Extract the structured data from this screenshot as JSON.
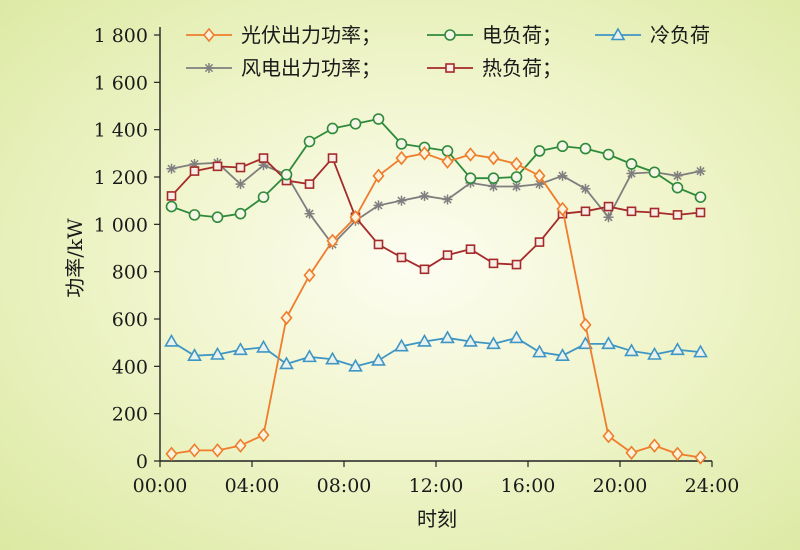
{
  "chart_data": {
    "type": "line",
    "xlabel": "时刻",
    "ylabel": "功率/kW",
    "xlim": [
      0,
      24
    ],
    "ylim": [
      0,
      1800
    ],
    "x_tick_labels": [
      "00:00",
      "04:00",
      "08:00",
      "12:00",
      "16:00",
      "20:00",
      "24:00"
    ],
    "x_tick_values": [
      0,
      4,
      8,
      12,
      16,
      20,
      24
    ],
    "y_tick_labels": [
      "0",
      "200",
      "400",
      "600",
      "800",
      "1 000",
      "1 200",
      "1 400",
      "1 600",
      "1 800"
    ],
    "y_tick_values": [
      0,
      200,
      400,
      600,
      800,
      1000,
      1200,
      1400,
      1600,
      1800
    ],
    "x": [
      1,
      2,
      3,
      4,
      5,
      6,
      7,
      8,
      9,
      10,
      11,
      12,
      13,
      14,
      15,
      16,
      17,
      18,
      19,
      20,
      21,
      22,
      23,
      24
    ],
    "grid": false,
    "legend_position": "top",
    "series": [
      {
        "name": "光伏出力功率；",
        "color": "#ef7d2c",
        "marker": "diamond",
        "values": [
          30,
          45,
          45,
          65,
          110,
          605,
          785,
          930,
          1030,
          1205,
          1280,
          1300,
          1265,
          1295,
          1280,
          1255,
          1205,
          1065,
          575,
          105,
          35,
          65,
          30,
          15
        ]
      },
      {
        "name": "电负荷；",
        "color": "#2f8a3c",
        "marker": "circle",
        "values": [
          1075,
          1040,
          1030,
          1045,
          1115,
          1210,
          1350,
          1405,
          1425,
          1445,
          1340,
          1325,
          1310,
          1195,
          1195,
          1200,
          1310,
          1330,
          1320,
          1295,
          1255,
          1220,
          1155,
          1115
        ]
      },
      {
        "name": "冷负荷",
        "color": "#3f96c4",
        "marker": "triangle",
        "values": [
          505,
          445,
          450,
          470,
          480,
          410,
          440,
          430,
          400,
          425,
          485,
          505,
          520,
          505,
          495,
          520,
          460,
          445,
          495,
          495,
          465,
          450,
          470,
          460
        ]
      },
      {
        "name": "风电出力功率；",
        "color": "#7f7f7f",
        "marker": "asterisk",
        "values": [
          1235,
          1255,
          1260,
          1170,
          1250,
          1210,
          1045,
          915,
          1015,
          1080,
          1100,
          1120,
          1105,
          1175,
          1160,
          1160,
          1170,
          1205,
          1150,
          1030,
          1215,
          1220,
          1205,
          1225
        ]
      },
      {
        "name": "热负荷；",
        "color": "#a52a2a",
        "marker": "square",
        "values": [
          1120,
          1225,
          1245,
          1240,
          1280,
          1185,
          1170,
          1280,
          1030,
          915,
          860,
          810,
          870,
          895,
          835,
          830,
          925,
          1045,
          1055,
          1075,
          1055,
          1050,
          1040,
          1050
        ]
      }
    ]
  }
}
